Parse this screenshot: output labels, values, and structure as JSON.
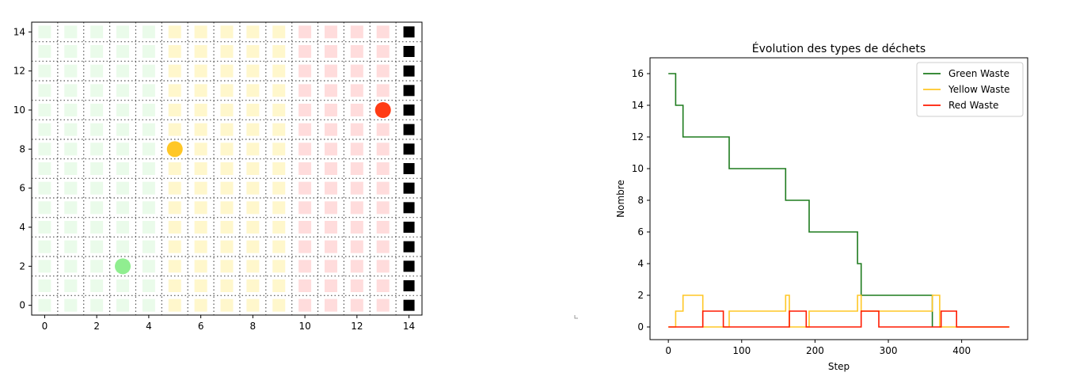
{
  "chart_data": [
    {
      "type": "heatmap",
      "title": "",
      "xlabel": "",
      "ylabel": "",
      "xlim": [
        -0.5,
        14.5
      ],
      "ylim": [
        -0.5,
        14.5
      ],
      "x_ticks": [
        0,
        2,
        4,
        6,
        8,
        10,
        12,
        14
      ],
      "y_ticks": [
        0,
        2,
        4,
        6,
        8,
        10,
        12,
        14
      ],
      "grid": true,
      "zones": [
        {
          "x_from": 0,
          "x_to": 4,
          "color": "#eafbea"
        },
        {
          "x_from": 5,
          "x_to": 9,
          "color": "#fff7cc"
        },
        {
          "x_from": 10,
          "x_to": 13,
          "color": "#ffdcdc"
        }
      ],
      "disposal_column": {
        "x": 14,
        "color": "#000000"
      },
      "agents": [
        {
          "x": 3,
          "y": 2,
          "color": "#90ee90"
        },
        {
          "x": 5,
          "y": 8,
          "color": "#ffc726"
        },
        {
          "x": 13,
          "y": 10,
          "color": "#ff3b14"
        }
      ]
    },
    {
      "type": "line",
      "title": "Évolution des types de déchets",
      "xlabel": "Step",
      "ylabel": "Nombre",
      "xlim": [
        -25,
        490
      ],
      "ylim": [
        -0.8,
        17.0
      ],
      "x_ticks": [
        0,
        100,
        200,
        300,
        400
      ],
      "y_ticks": [
        0,
        2,
        4,
        6,
        8,
        10,
        12,
        14,
        16
      ],
      "grid": false,
      "legend_position": "top-right",
      "series": [
        {
          "name": "Green Waste",
          "color": "#1e7b1e",
          "points": [
            [
              0,
              16
            ],
            [
              10,
              16
            ],
            [
              10,
              14
            ],
            [
              20,
              14
            ],
            [
              20,
              12
            ],
            [
              83,
              12
            ],
            [
              83,
              10
            ],
            [
              160,
              10
            ],
            [
              160,
              8
            ],
            [
              192,
              8
            ],
            [
              192,
              6
            ],
            [
              258,
              6
            ],
            [
              258,
              4
            ],
            [
              263,
              4
            ],
            [
              263,
              2
            ],
            [
              360,
              2
            ],
            [
              360,
              0
            ]
          ]
        },
        {
          "name": "Yellow Waste",
          "color": "#ffc726",
          "points": [
            [
              0,
              0
            ],
            [
              10,
              0
            ],
            [
              10,
              1
            ],
            [
              20,
              1
            ],
            [
              20,
              2
            ],
            [
              47,
              2
            ],
            [
              47,
              0
            ],
            [
              83,
              0
            ],
            [
              83,
              1
            ],
            [
              160,
              1
            ],
            [
              160,
              2
            ],
            [
              165,
              2
            ],
            [
              165,
              0
            ],
            [
              192,
              0
            ],
            [
              192,
              1
            ],
            [
              258,
              1
            ],
            [
              258,
              2
            ],
            [
              263,
              2
            ],
            [
              263,
              1
            ],
            [
              360,
              1
            ],
            [
              360,
              2
            ],
            [
              370,
              2
            ],
            [
              370,
              0
            ],
            [
              465,
              0
            ]
          ]
        },
        {
          "name": "Red Waste",
          "color": "#ff1a00",
          "points": [
            [
              0,
              0
            ],
            [
              47,
              0
            ],
            [
              47,
              1
            ],
            [
              75,
              1
            ],
            [
              75,
              0
            ],
            [
              165,
              0
            ],
            [
              165,
              1
            ],
            [
              188,
              1
            ],
            [
              188,
              0
            ],
            [
              263,
              0
            ],
            [
              263,
              1
            ],
            [
              287,
              1
            ],
            [
              287,
              0
            ],
            [
              372,
              0
            ],
            [
              372,
              1
            ],
            [
              393,
              1
            ],
            [
              393,
              0
            ],
            [
              465,
              0
            ]
          ]
        }
      ]
    }
  ]
}
